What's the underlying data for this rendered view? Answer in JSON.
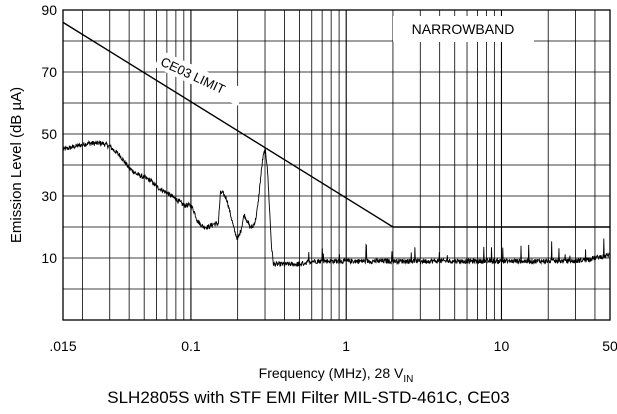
{
  "chart_data": {
    "type": "line",
    "caption": "SLH2805S with STF EMI Filter MIL-STD-461C, CE03",
    "xlabel_main": "Frequency (MHz), 28 V",
    "xlabel_sub": "IN",
    "ylabel": "Emission Level (dB µA)",
    "x_scale": "log",
    "xlim": [
      0.015,
      50
    ],
    "ylim": [
      -10,
      90
    ],
    "grid": true,
    "x_ticks": [
      {
        "value": 0.015,
        "label": ".015"
      },
      {
        "value": 0.1,
        "label": "0.1"
      },
      {
        "value": 1,
        "label": "1"
      },
      {
        "value": 10,
        "label": "10"
      },
      {
        "value": 50,
        "label": "50"
      }
    ],
    "y_ticks": [
      {
        "value": 10,
        "label": "10"
      },
      {
        "value": 30,
        "label": "30"
      },
      {
        "value": 50,
        "label": "50"
      },
      {
        "value": 70,
        "label": "70"
      },
      {
        "value": 90,
        "label": "90"
      }
    ],
    "annotations": {
      "mode_label": "NARROWBAND",
      "limit_label": "CE03 LIMIT"
    },
    "series": [
      {
        "name": "CE03 LIMIT",
        "x": [
          0.015,
          2,
          50
        ],
        "y": [
          86,
          20,
          20
        ]
      },
      {
        "name": "Emission",
        "x": [
          0.015,
          0.018,
          0.022,
          0.027,
          0.03,
          0.035,
          0.04,
          0.045,
          0.05,
          0.055,
          0.06,
          0.065,
          0.07,
          0.08,
          0.09,
          0.1,
          0.105,
          0.11,
          0.12,
          0.13,
          0.14,
          0.15,
          0.155,
          0.16,
          0.165,
          0.17,
          0.18,
          0.19,
          0.2,
          0.21,
          0.22,
          0.23,
          0.24,
          0.25,
          0.26,
          0.27,
          0.28,
          0.29,
          0.3,
          0.31,
          0.32,
          0.33,
          0.34,
          0.36,
          0.4,
          0.5,
          0.6,
          0.8,
          1.0,
          1.5,
          2,
          3,
          5,
          8,
          10,
          15,
          20,
          30,
          40,
          50
        ],
        "y": [
          45,
          46,
          47,
          47,
          46,
          43,
          39,
          37,
          36,
          35,
          33,
          32,
          31,
          29,
          27,
          27,
          25,
          22,
          20,
          20,
          21,
          21,
          31,
          31,
          30,
          29,
          24,
          19,
          16,
          19,
          24,
          22,
          20,
          20,
          22,
          27,
          35,
          42,
          45,
          40,
          27,
          14,
          8,
          8,
          8,
          8,
          9,
          9,
          9,
          9,
          9,
          9,
          9,
          9,
          9,
          9,
          9,
          9,
          10,
          11
        ]
      }
    ]
  }
}
